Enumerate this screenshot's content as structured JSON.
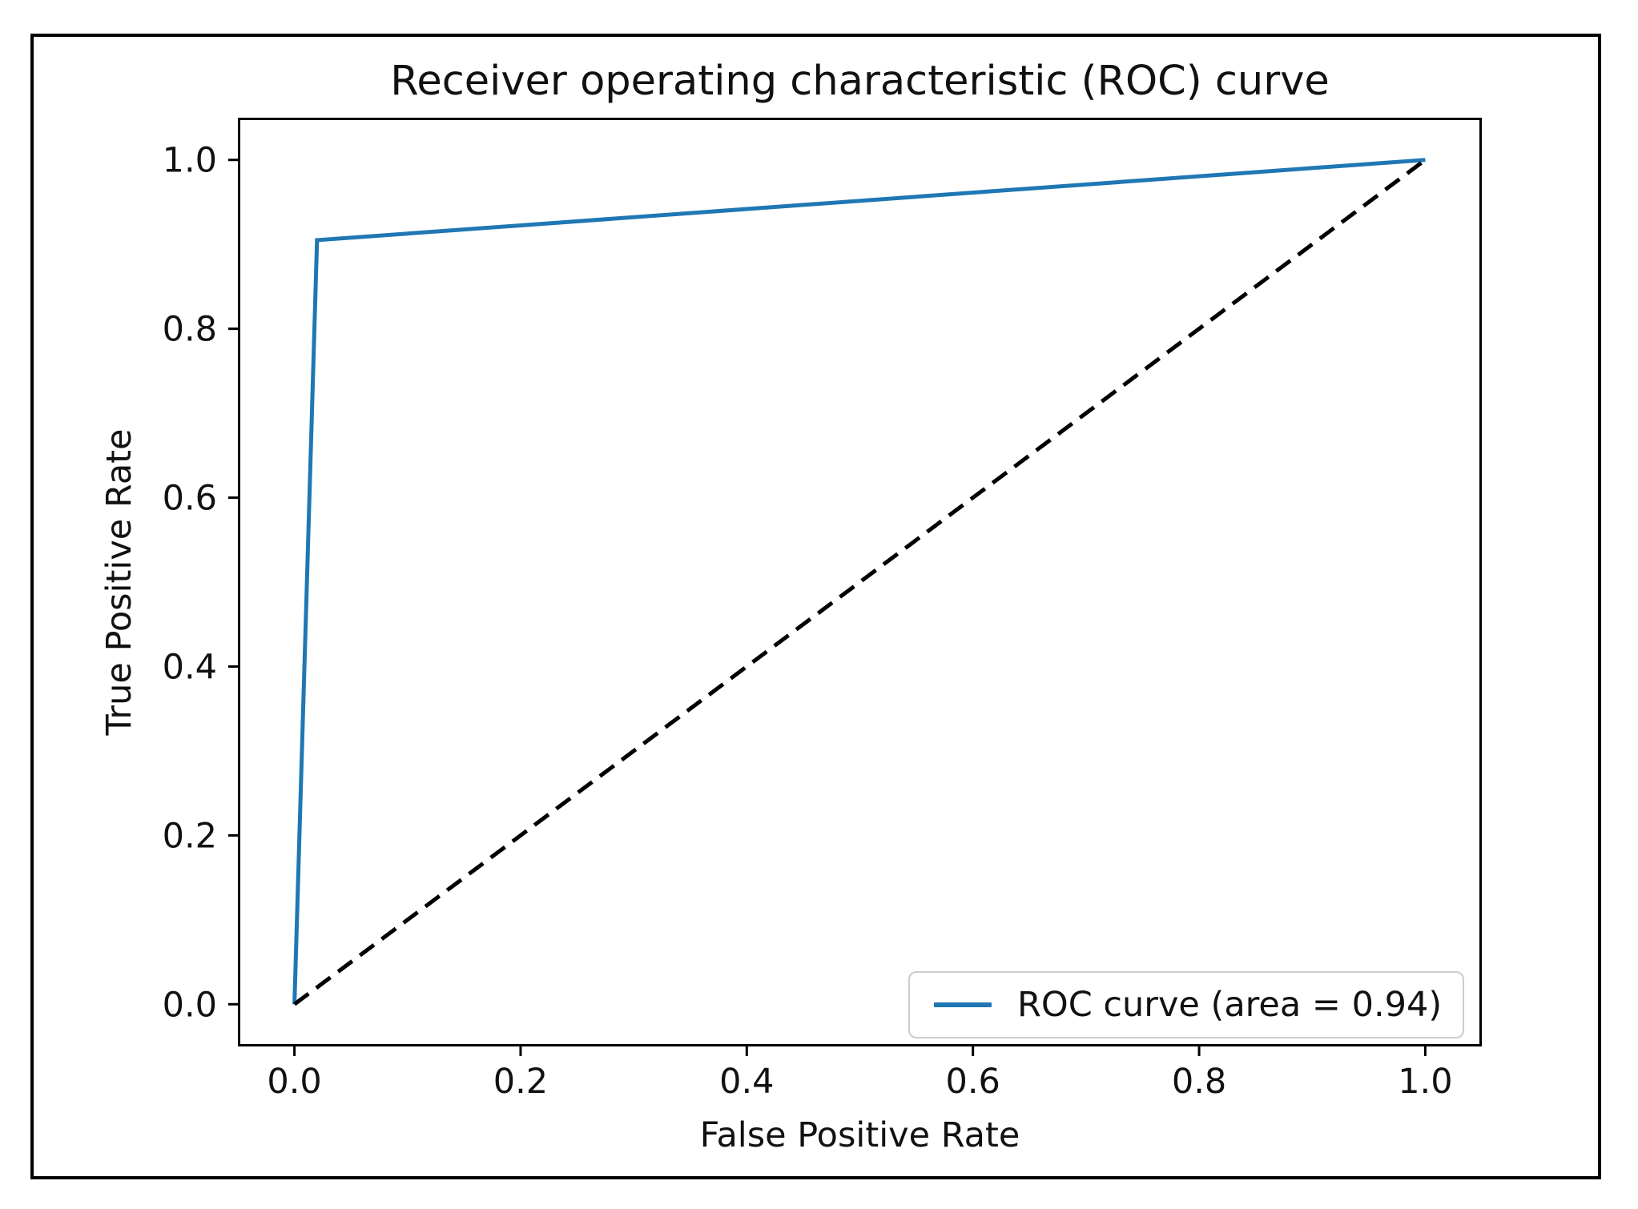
{
  "figure": {
    "background": "#ffffff",
    "border_color": "#000000"
  },
  "chart_data": {
    "type": "line",
    "title": "Receiver operating characteristic (ROC) curve",
    "xlabel": "False Positive Rate",
    "ylabel": "True Positive Rate",
    "xlim": [
      -0.05,
      1.05
    ],
    "ylim": [
      -0.05,
      1.05
    ],
    "grid": false,
    "xticks": {
      "values": [
        0.0,
        0.2,
        0.4,
        0.6,
        0.8,
        1.0
      ],
      "labels": [
        "0.0",
        "0.2",
        "0.4",
        "0.6",
        "0.8",
        "1.0"
      ]
    },
    "yticks": {
      "values": [
        0.0,
        0.2,
        0.4,
        0.6,
        0.8,
        1.0
      ],
      "labels": [
        "0.0",
        "0.2",
        "0.4",
        "0.6",
        "0.8",
        "1.0"
      ]
    },
    "series": [
      {
        "id": "roc-curve-line",
        "name": "ROC curve",
        "color": "#1f77b4",
        "style": "solid",
        "x": [
          0.0,
          0.02,
          1.0
        ],
        "y": [
          0.0,
          0.905,
          1.0
        ]
      },
      {
        "id": "chance-diagonal-line",
        "name": "Chance diagonal",
        "color": "#000000",
        "style": "dashed",
        "x": [
          0.0,
          1.0
        ],
        "y": [
          0.0,
          1.0
        ]
      }
    ],
    "auc": 0.94,
    "legend": {
      "position": "lower right",
      "entries": [
        {
          "label": "ROC curve (area = 0.94)",
          "color": "#1f77b4"
        }
      ]
    }
  }
}
